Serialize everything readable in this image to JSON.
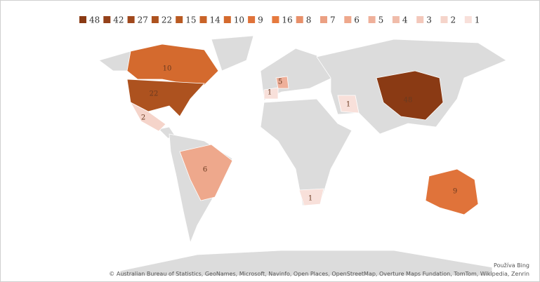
{
  "legend": [
    {
      "label": "48",
      "color": "#8a3a14"
    },
    {
      "label": "42",
      "color": "#94411a"
    },
    {
      "label": "27",
      "color": "#a0481c"
    },
    {
      "label": "22",
      "color": "#ad521f"
    },
    {
      "label": "15",
      "color": "#b95a22"
    },
    {
      "label": "14",
      "color": "#c96328"
    },
    {
      "label": "10",
      "color": "#d46a2e"
    },
    {
      "label": "9",
      "color": "#e0733a"
    },
    {
      "label": "16",
      "color": "#e67a3e"
    },
    {
      "label": "8",
      "color": "#e8906a"
    },
    {
      "label": "7",
      "color": "#eba083"
    },
    {
      "label": "6",
      "color": "#eea88c"
    },
    {
      "label": "5",
      "color": "#efb09a"
    },
    {
      "label": "4",
      "color": "#f0bcaa"
    },
    {
      "label": "3",
      "color": "#f3c8bb"
    },
    {
      "label": "2",
      "color": "#f5d4ca"
    },
    {
      "label": "1",
      "color": "#f8e0da"
    }
  ],
  "regions": [
    {
      "label": "10",
      "color": "#d46a2e"
    },
    {
      "label": "22",
      "color": "#ad521f"
    },
    {
      "label": "2",
      "color": "#f5d4ca"
    },
    {
      "label": "6",
      "color": "#eea88c"
    },
    {
      "label": "9",
      "color": "#e0733a"
    },
    {
      "label": "48",
      "color": "#8a3a14"
    },
    {
      "label": "1",
      "color": "#f8e0da"
    },
    {
      "label": "1",
      "color": "#f8e0da"
    },
    {
      "label": "1",
      "color": "#f8e0da"
    },
    {
      "label": "5",
      "color": "#efb09a"
    }
  ],
  "attribution": {
    "powered": "Používa Bing",
    "copyright": "© Australian Bureau of Statistics, GeoNames, Microsoft, Navinfo, Open Places, OpenStreetMap, Overture Maps Fundation, TomTom, Wikipedia, Zenrin"
  }
}
